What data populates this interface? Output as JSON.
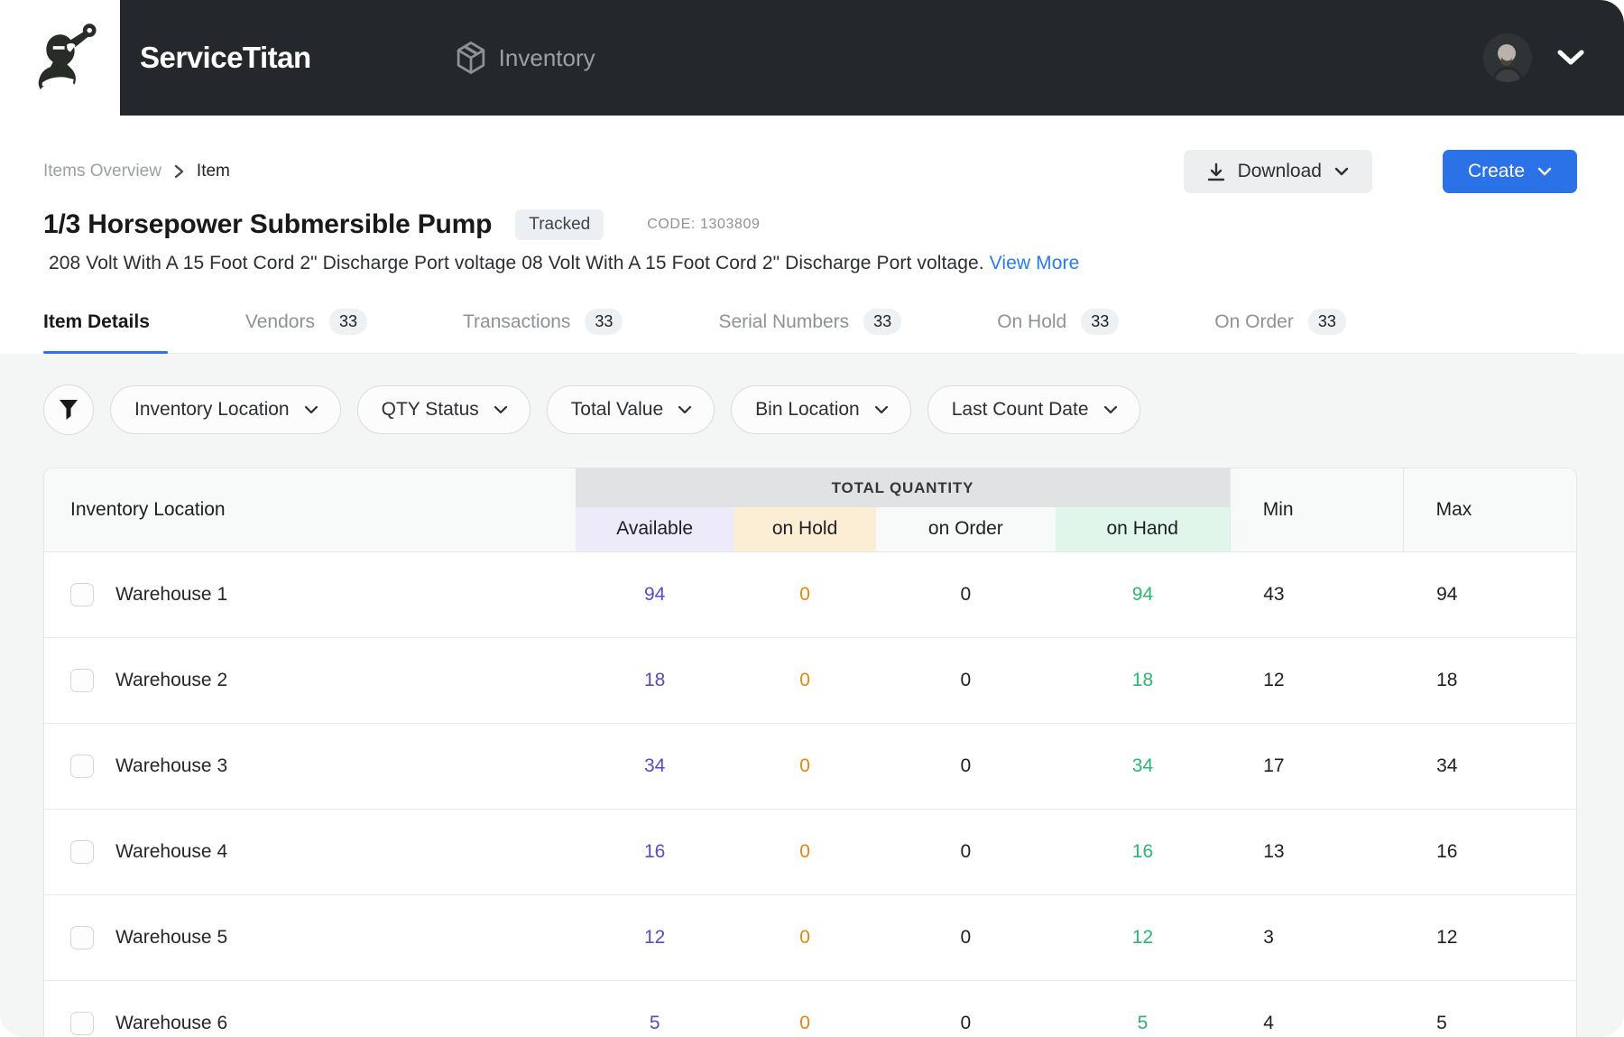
{
  "nav": {
    "brand": "ServiceTitan",
    "product": "Inventory"
  },
  "breadcrumb": {
    "parent": "Items Overview",
    "current": "Item"
  },
  "actions": {
    "download_label": "Download",
    "create_label": "Create"
  },
  "header": {
    "title": "1/3 Horsepower Submersible Pump",
    "badge": "Tracked",
    "code": "CODE: 1303809",
    "description": "208 Volt With A 15 Foot Cord 2\" Discharge Port voltage 08 Volt With A 15 Foot Cord 2\" Discharge Port voltage.",
    "view_more": "View More"
  },
  "tabs": [
    {
      "label": "Item Details",
      "count": null,
      "active": true
    },
    {
      "label": "Vendors",
      "count": "33",
      "active": false
    },
    {
      "label": "Transactions",
      "count": "33",
      "active": false
    },
    {
      "label": "Serial Numbers",
      "count": "33",
      "active": false
    },
    {
      "label": "On Hold",
      "count": "33",
      "active": false
    },
    {
      "label": "On Order",
      "count": "33",
      "active": false
    }
  ],
  "filters": [
    "Inventory Location",
    "QTY Status",
    "Total Value",
    "Bin Location",
    "Last Count Date"
  ],
  "table": {
    "group_header": "TOTAL QUANTITY",
    "columns": {
      "location": "Inventory Location",
      "available": "Available",
      "on_hold": "on Hold",
      "on_order": "on Order",
      "on_hand": "on Hand",
      "min": "Min",
      "max": "Max"
    },
    "rows": [
      {
        "location": "Warehouse 1",
        "available": "94",
        "on_hold": "0",
        "on_order": "0",
        "on_hand": "94",
        "min": "43",
        "max": "94"
      },
      {
        "location": "Warehouse 2",
        "available": "18",
        "on_hold": "0",
        "on_order": "0",
        "on_hand": "18",
        "min": "12",
        "max": "18"
      },
      {
        "location": "Warehouse 3",
        "available": "34",
        "on_hold": "0",
        "on_order": "0",
        "on_hand": "34",
        "min": "17",
        "max": "34"
      },
      {
        "location": "Warehouse 4",
        "available": "16",
        "on_hold": "0",
        "on_order": "0",
        "on_hand": "16",
        "min": "13",
        "max": "16"
      },
      {
        "location": "Warehouse 5",
        "available": "12",
        "on_hold": "0",
        "on_order": "0",
        "on_hand": "12",
        "min": "3",
        "max": "12"
      },
      {
        "location": "Warehouse 6",
        "available": "5",
        "on_hold": "0",
        "on_order": "0",
        "on_hand": "5",
        "min": "4",
        "max": "5"
      }
    ]
  },
  "icons": {
    "mascot": "servicetitan-titan-mascot",
    "product": "inventory-cube",
    "user": "avatar-photo",
    "filter": "funnel",
    "download": "download-arrow",
    "chevron": "chevron-down"
  },
  "colors": {
    "nav_bg": "#24282d",
    "accent_blue": "#2b72e8",
    "available_purple": "#5a49c8",
    "on_hold_orange": "#ee8306",
    "on_hand_green": "#2bb673",
    "section_bg": "#f4f5f5",
    "group_header_bg": "#e1e2e3",
    "available_bg": "#edeafa",
    "on_hold_bg": "#fcedd5",
    "on_hand_bg": "#e0f6ea"
  }
}
